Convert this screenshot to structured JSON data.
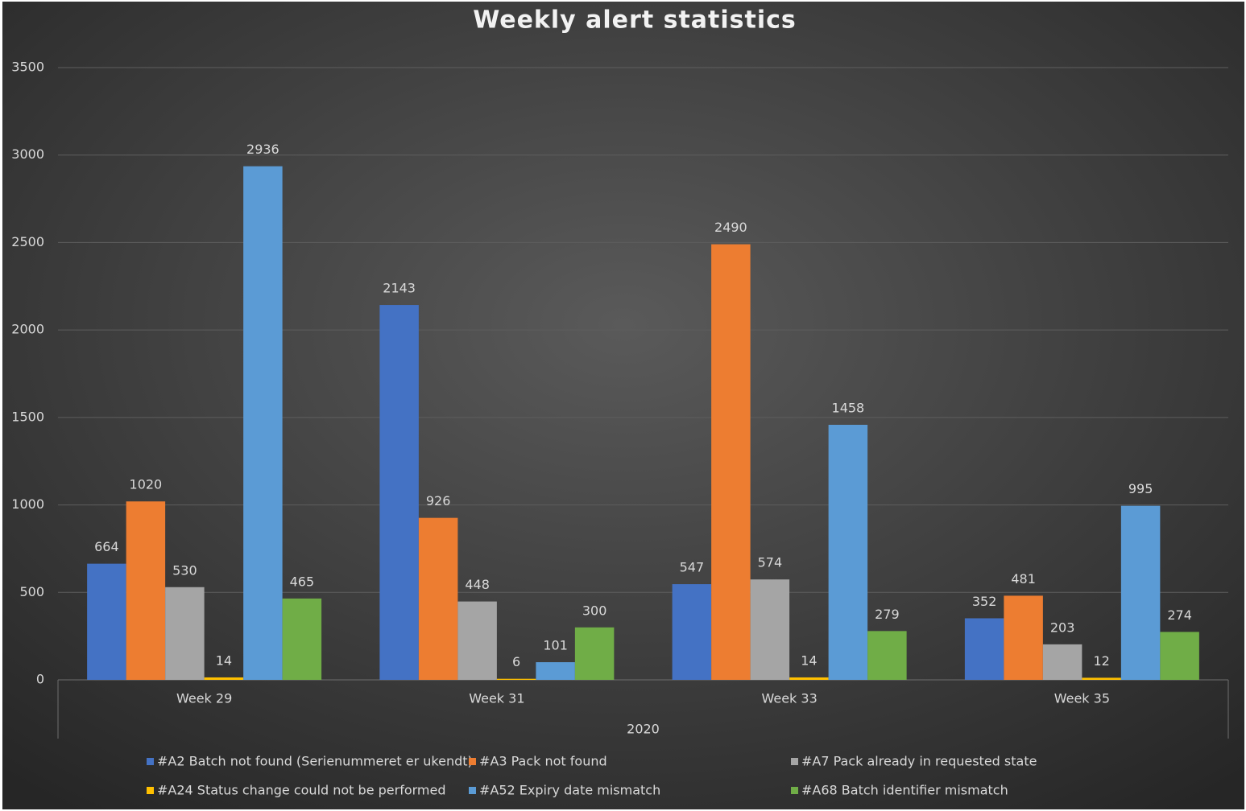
{
  "chart_data": {
    "type": "bar",
    "title": "Weekly alert statistics",
    "categories": [
      "Week 29",
      "Week 31",
      "Week 33",
      "Week 35"
    ],
    "category_group": "2020",
    "series": [
      {
        "name": "#A2 Batch not found (Serienummeret er ukendt)",
        "color": "#4472c4",
        "values": [
          664,
          2143,
          547,
          352
        ]
      },
      {
        "name": "#A3 Pack not found",
        "color": "#ed7d31",
        "values": [
          1020,
          926,
          2490,
          481
        ]
      },
      {
        "name": "#A7 Pack already in requested state",
        "color": "#a5a5a5",
        "values": [
          530,
          448,
          574,
          203
        ]
      },
      {
        "name": "#A24 Status change could not be performed",
        "color": "#ffc000",
        "values": [
          14,
          6,
          14,
          12
        ]
      },
      {
        "name": "#A52 Expiry date mismatch",
        "color": "#5b9bd5",
        "values": [
          2936,
          101,
          1458,
          995
        ]
      },
      {
        "name": "#A68 Batch identifier mismatch",
        "color": "#70ad47",
        "values": [
          465,
          300,
          279,
          274
        ]
      }
    ],
    "ylim": [
      0,
      3500
    ],
    "yticks": [
      0,
      500,
      1000,
      1500,
      2000,
      2500,
      3000,
      3500
    ],
    "grid": true,
    "legend": "bottom"
  }
}
